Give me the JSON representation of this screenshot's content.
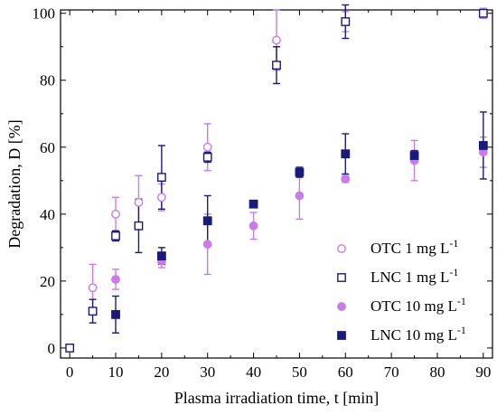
{
  "chart_data": {
    "type": "scatter",
    "title": "",
    "xlabel": "Plasma irradiation time, t [min]",
    "ylabel": "Degradation, D [%]",
    "xlim": [
      -2,
      92
    ],
    "ylim": [
      -3,
      101
    ],
    "xticks": [
      0,
      10,
      20,
      30,
      40,
      50,
      60,
      70,
      80,
      90
    ],
    "yticks": [
      0,
      20,
      40,
      60,
      80,
      100
    ],
    "grid": false,
    "legend_position": "bottom-right",
    "series": [
      {
        "name": "OTC 1 mg L",
        "unit_sup": "-1",
        "marker": "circle-open",
        "color": "#C77CE8",
        "points": [
          {
            "x": 0,
            "y": 0,
            "err": 0
          },
          {
            "x": 5,
            "y": 18,
            "err": 7
          },
          {
            "x": 10,
            "y": 40,
            "err": 5
          },
          {
            "x": 15,
            "y": 43.5,
            "err": 8
          },
          {
            "x": 20,
            "y": 45,
            "err": 4
          },
          {
            "x": 30,
            "y": 60,
            "err": 7
          },
          {
            "x": 45,
            "y": 92,
            "err": 9
          },
          {
            "x": 60,
            "y": 97.5,
            "err": 3
          },
          {
            "x": 90,
            "y": 100,
            "err": 1.5
          }
        ]
      },
      {
        "name": "LNC 1 mg L",
        "unit_sup": "-1",
        "marker": "square-open",
        "color": "#1A1A7A",
        "points": [
          {
            "x": 0,
            "y": 0,
            "err": 0
          },
          {
            "x": 5,
            "y": 11,
            "err": 3.5
          },
          {
            "x": 10,
            "y": 33.5,
            "err": 1.5
          },
          {
            "x": 15,
            "y": 36.5,
            "err": 8
          },
          {
            "x": 20,
            "y": 51,
            "err": 9.5
          },
          {
            "x": 30,
            "y": 57,
            "err": 1.5
          },
          {
            "x": 45,
            "y": 84.5,
            "err": 5.5
          },
          {
            "x": 60,
            "y": 97.5,
            "err": 5
          },
          {
            "x": 90,
            "y": 100,
            "err": 1
          }
        ]
      },
      {
        "name": "OTC 10 mg L",
        "unit_sup": "-1",
        "marker": "circle-filled",
        "color": "#C77CE8",
        "points": [
          {
            "x": 10,
            "y": 20.5,
            "err": 3
          },
          {
            "x": 20,
            "y": 26,
            "err": 2
          },
          {
            "x": 30,
            "y": 31,
            "err": 9
          },
          {
            "x": 40,
            "y": 36.5,
            "err": 4
          },
          {
            "x": 50,
            "y": 45.5,
            "err": 7
          },
          {
            "x": 60,
            "y": 50.5,
            "err": 1
          },
          {
            "x": 75,
            "y": 56,
            "err": 6
          },
          {
            "x": 90,
            "y": 58.5,
            "err": 4.5
          }
        ]
      },
      {
        "name": "LNC 10 mg L",
        "unit_sup": "-1",
        "marker": "square-filled",
        "color": "#1A1A7A",
        "points": [
          {
            "x": 10,
            "y": 10,
            "err": 5.5
          },
          {
            "x": 20,
            "y": 27.5,
            "err": 2.5
          },
          {
            "x": 30,
            "y": 38,
            "err": 7.5
          },
          {
            "x": 40,
            "y": 43,
            "err": 0.5
          },
          {
            "x": 50,
            "y": 52.5,
            "err": 1.5
          },
          {
            "x": 60,
            "y": 58,
            "err": 6
          },
          {
            "x": 75,
            "y": 57.5,
            "err": 1.5
          },
          {
            "x": 90,
            "y": 60.5,
            "err": 10
          }
        ]
      }
    ]
  }
}
